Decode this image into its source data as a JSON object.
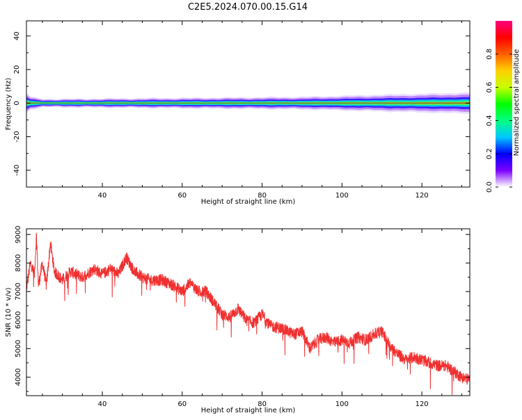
{
  "title": "C2E5.2024.070.00.15.G14",
  "chart_data": [
    {
      "type": "heatmap",
      "xlabel": "Height of straight line (km)",
      "ylabel": "Frequency (Hz)",
      "xlim": [
        21,
        132
      ],
      "ylim": [
        -50,
        49
      ],
      "xticks": [
        40,
        60,
        80,
        100,
        120
      ],
      "yticks": [
        40,
        20,
        0,
        -20,
        -40
      ],
      "description_band": "Narrow spectral band centered at 0 Hz, widening slightly with height",
      "band_profile": [
        {
          "x": 22,
          "halfwidth": 3
        },
        {
          "x": 25,
          "halfwidth": 2
        },
        {
          "x": 30,
          "halfwidth": 2
        },
        {
          "x": 60,
          "halfwidth": 2.5
        },
        {
          "x": 90,
          "halfwidth": 3
        },
        {
          "x": 110,
          "halfwidth": 4
        },
        {
          "x": 132,
          "halfwidth": 5
        }
      ],
      "colorbar": {
        "label": "Normalized spectral amplitude",
        "range": [
          0,
          1
        ],
        "ticks": [
          "0.0",
          "0.2",
          "0.4",
          "0.6",
          "0.8"
        ],
        "colors": [
          "#ffffff",
          "#7b00ff",
          "#0000ff",
          "#00c8ff",
          "#00ff80",
          "#00ff00",
          "#c8ff00",
          "#ffd000",
          "#ff6000",
          "#ff0000",
          "#ff0080"
        ]
      }
    },
    {
      "type": "line",
      "xlabel": "Height of straight line (km)",
      "ylabel": "SNR (10 * v/v)",
      "xlim": [
        21,
        132
      ],
      "ylim": [
        3350,
        9200
      ],
      "xticks": [
        40,
        60,
        80,
        100,
        120
      ],
      "yticks": [
        9000,
        8000,
        7000,
        6000,
        5000,
        4000
      ],
      "color": "#f03030",
      "series": [
        {
          "x": [
            21,
            22,
            23,
            23.5,
            24,
            25,
            26,
            27,
            28,
            30,
            32,
            35,
            38,
            40,
            42,
            44,
            46,
            48,
            50,
            52,
            55,
            58,
            60,
            62,
            64,
            66,
            67,
            68,
            69,
            70,
            72,
            74,
            76,
            78,
            80,
            82,
            85,
            88,
            90,
            92,
            94,
            96,
            98,
            100,
            102,
            104,
            106,
            108,
            110,
            112,
            114,
            116,
            118,
            120,
            122,
            124,
            126,
            128,
            130,
            132
          ],
          "y": [
            7100,
            8000,
            7600,
            9000,
            7200,
            8000,
            7200,
            8700,
            7700,
            7400,
            7700,
            7500,
            7800,
            7600,
            7800,
            7600,
            8200,
            7700,
            7500,
            7400,
            7400,
            7200,
            7000,
            7300,
            7000,
            7000,
            6800,
            6600,
            6400,
            6200,
            6100,
            6400,
            6000,
            5900,
            6200,
            5800,
            5700,
            5500,
            5600,
            5000,
            5300,
            5400,
            5200,
            5300,
            5200,
            5400,
            5300,
            5500,
            5600,
            5100,
            4800,
            4600,
            4700,
            4600,
            4500,
            4400,
            4400,
            4200,
            4000,
            3900
          ]
        }
      ]
    }
  ]
}
